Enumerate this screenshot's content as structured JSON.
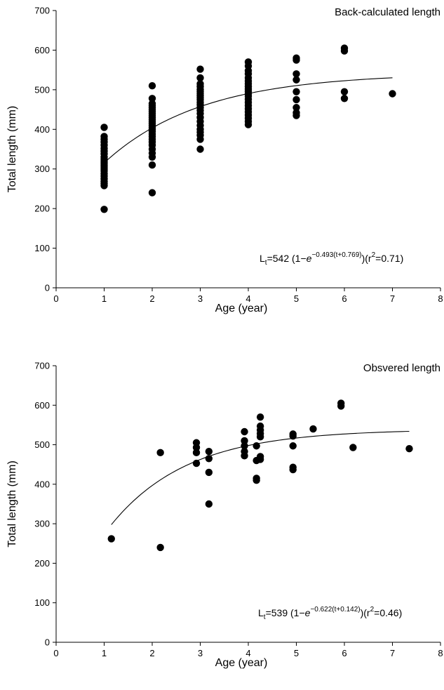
{
  "chart_data": [
    {
      "type": "scatter",
      "title": "Back-calculated length",
      "xlabel": "Age (year)",
      "ylabel": "Total length (mm)",
      "xlim": [
        0,
        8
      ],
      "ylim": [
        0,
        700
      ],
      "x_ticks": [
        "0",
        "1",
        "2",
        "3",
        "4",
        "5",
        "6",
        "7",
        "8"
      ],
      "y_ticks": [
        "0",
        "100",
        "200",
        "300",
        "400",
        "500",
        "600",
        "700"
      ],
      "equation": {
        "prefix": "L",
        "sub": "t",
        "main": "=542 (1−",
        "e": "e",
        "sup": "−0.493(t+0.769)",
        "suffix": ")(r",
        "r2sup": "2",
        "r2value": "=0.71)"
      },
      "fit": {
        "Linf": 542,
        "K": 0.493,
        "t0": -0.769,
        "x_from": 1,
        "x_to": 7
      },
      "points": [
        [
          1,
          198
        ],
        [
          1,
          258
        ],
        [
          1,
          263
        ],
        [
          1,
          268
        ],
        [
          1,
          275
        ],
        [
          1,
          282
        ],
        [
          1,
          288
        ],
        [
          1,
          295
        ],
        [
          1,
          300
        ],
        [
          1,
          305
        ],
        [
          1,
          310
        ],
        [
          1,
          315
        ],
        [
          1,
          320
        ],
        [
          1,
          325
        ],
        [
          1,
          330
        ],
        [
          1,
          338
        ],
        [
          1,
          345
        ],
        [
          1,
          352
        ],
        [
          1,
          360
        ],
        [
          1,
          368
        ],
        [
          1,
          375
        ],
        [
          1,
          382
        ],
        [
          1,
          405
        ],
        [
          2,
          240
        ],
        [
          2,
          310
        ],
        [
          2,
          330
        ],
        [
          2,
          340
        ],
        [
          2,
          350
        ],
        [
          2,
          360
        ],
        [
          2,
          368
        ],
        [
          2,
          375
        ],
        [
          2,
          382
        ],
        [
          2,
          388
        ],
        [
          2,
          395
        ],
        [
          2,
          400
        ],
        [
          2,
          405
        ],
        [
          2,
          410
        ],
        [
          2,
          415
        ],
        [
          2,
          420
        ],
        [
          2,
          425
        ],
        [
          2,
          430
        ],
        [
          2,
          435
        ],
        [
          2,
          440
        ],
        [
          2,
          445
        ],
        [
          2,
          450
        ],
        [
          2,
          455
        ],
        [
          2,
          460
        ],
        [
          2,
          465
        ],
        [
          2,
          478
        ],
        [
          2,
          510
        ],
        [
          3,
          350
        ],
        [
          3,
          375
        ],
        [
          3,
          385
        ],
        [
          3,
          393
        ],
        [
          3,
          400
        ],
        [
          3,
          410
        ],
        [
          3,
          420
        ],
        [
          3,
          430
        ],
        [
          3,
          440
        ],
        [
          3,
          448
        ],
        [
          3,
          455
        ],
        [
          3,
          462
        ],
        [
          3,
          468
        ],
        [
          3,
          475
        ],
        [
          3,
          480
        ],
        [
          3,
          485
        ],
        [
          3,
          490
        ],
        [
          3,
          495
        ],
        [
          3,
          500
        ],
        [
          3,
          508
        ],
        [
          3,
          515
        ],
        [
          3,
          530
        ],
        [
          3,
          552
        ],
        [
          4,
          412
        ],
        [
          4,
          420
        ],
        [
          4,
          428
        ],
        [
          4,
          436
        ],
        [
          4,
          444
        ],
        [
          4,
          452
        ],
        [
          4,
          460
        ],
        [
          4,
          468
        ],
        [
          4,
          476
        ],
        [
          4,
          484
        ],
        [
          4,
          490
        ],
        [
          4,
          496
        ],
        [
          4,
          502
        ],
        [
          4,
          508
        ],
        [
          4,
          515
        ],
        [
          4,
          522
        ],
        [
          4,
          530
        ],
        [
          4,
          540
        ],
        [
          4,
          548
        ],
        [
          4,
          560
        ],
        [
          4,
          570
        ],
        [
          5,
          435
        ],
        [
          5,
          442
        ],
        [
          5,
          455
        ],
        [
          5,
          475
        ],
        [
          5,
          495
        ],
        [
          5,
          525
        ],
        [
          5,
          540
        ],
        [
          5,
          575
        ],
        [
          5,
          580
        ],
        [
          6,
          478
        ],
        [
          6,
          495
        ],
        [
          6,
          598
        ],
        [
          6,
          605
        ],
        [
          7,
          490
        ]
      ]
    },
    {
      "type": "scatter",
      "title": "Obsvered length",
      "xlabel": "Age (year)",
      "ylabel": "Total length (mm)",
      "xlim": [
        0,
        8
      ],
      "ylim": [
        0,
        700
      ],
      "x_ticks": [
        "0",
        "1",
        "2",
        "3",
        "4",
        "5",
        "6",
        "7",
        "8"
      ],
      "y_ticks": [
        "0",
        "100",
        "200",
        "300",
        "400",
        "500",
        "600",
        "700"
      ],
      "equation": {
        "prefix": "L",
        "sub": "t",
        "main": "=539 (1−",
        "e": "e",
        "sup": "−0.622(t+0.142)",
        "suffix": ")(r",
        "r2sup": "2",
        "r2value": "=0.46)"
      },
      "fit": {
        "Linf": 539,
        "K": 0.622,
        "t0": -0.142,
        "x_from": 1.15,
        "x_to": 7.35
      },
      "points": [
        [
          1.15,
          262
        ],
        [
          2.17,
          480
        ],
        [
          2.17,
          240
        ],
        [
          2.92,
          505
        ],
        [
          2.92,
          493
        ],
        [
          2.92,
          480
        ],
        [
          2.92,
          453
        ],
        [
          3.18,
          483
        ],
        [
          3.18,
          465
        ],
        [
          3.18,
          430
        ],
        [
          3.18,
          350
        ],
        [
          3.92,
          533
        ],
        [
          3.92,
          510
        ],
        [
          3.92,
          497
        ],
        [
          3.92,
          483
        ],
        [
          3.92,
          472
        ],
        [
          4.17,
          497
        ],
        [
          4.17,
          460
        ],
        [
          4.17,
          415
        ],
        [
          4.17,
          410
        ],
        [
          4.25,
          570
        ],
        [
          4.25,
          547
        ],
        [
          4.25,
          537
        ],
        [
          4.25,
          528
        ],
        [
          4.25,
          520
        ],
        [
          4.25,
          470
        ],
        [
          4.25,
          463
        ],
        [
          4.93,
          527
        ],
        [
          4.93,
          522
        ],
        [
          4.93,
          497
        ],
        [
          4.93,
          443
        ],
        [
          4.93,
          437
        ],
        [
          5.35,
          540
        ],
        [
          5.93,
          605
        ],
        [
          5.93,
          598
        ],
        [
          6.18,
          493
        ],
        [
          7.35,
          490
        ]
      ]
    }
  ]
}
